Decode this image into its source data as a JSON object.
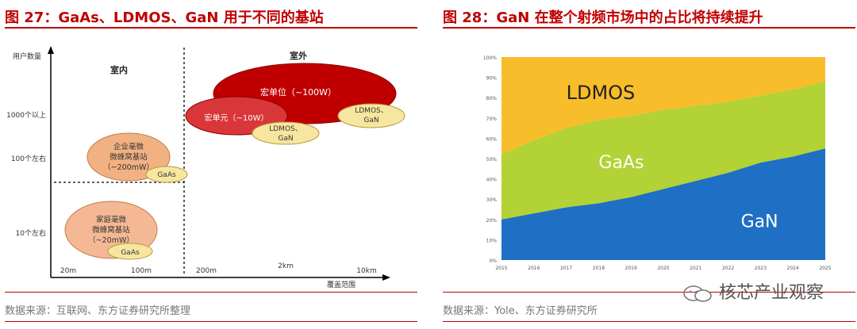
{
  "left": {
    "title": "图 27：GaAs、LDMOS、GaN 用于不同的基站",
    "source": "数据来源：互联网、东方证券研究所整理",
    "y_axis_label": "用户数量",
    "x_axis_label": "覆盖范围",
    "y_ticks": [
      "1000个以上",
      "100个左右",
      "10个左右"
    ],
    "x_ticks": [
      "20m",
      "100m",
      "200m",
      "2km",
      "10km"
    ],
    "region_indoor": "室内",
    "region_outdoor": "室外",
    "bubbles": {
      "macro": "宏单位（~100W）",
      "micro": "宏单元（~10W）",
      "ldmos_gan_1": [
        "LDMOS、",
        "GaN"
      ],
      "ldmos_gan_2": [
        "LDMOS、",
        "GaN"
      ],
      "enterprise": [
        "企业毫微",
        "微蜂窝基站",
        "（~200mW）"
      ],
      "gaas_1": "GaAs",
      "home": [
        "家庭毫微",
        "微蜂窝基站",
        "（~20mW）"
      ],
      "gaas_2": "GaAs"
    },
    "colors": {
      "macro": "#c00000",
      "micro": "#d9363a",
      "ldmos_gan": "#f7e6a0",
      "enterprise": "#f2b182",
      "home": "#f5b894",
      "gaas": "#f7e6a0"
    }
  },
  "right": {
    "title": "图 28：GaN 在整个射频市场中的占比将持续提升",
    "source": "数据来源：Yole、东方证券研究所",
    "watermark": "核芯产业观察"
  },
  "chart_data": {
    "type": "area",
    "stacked": true,
    "x": [
      2015,
      2016,
      2017,
      2018,
      2019,
      2020,
      2021,
      2022,
      2023,
      2024,
      2025
    ],
    "x_labels": [
      "2015",
      "2016",
      "2017",
      "2018",
      "2019",
      "2020",
      "2021",
      "2022",
      "2023",
      "2024",
      "2025"
    ],
    "y_ticks": [
      "0%",
      "10%",
      "20%",
      "30%",
      "40%",
      "50%",
      "60%",
      "70%",
      "80%",
      "90%",
      "100%"
    ],
    "ylim": [
      0,
      100
    ],
    "series": [
      {
        "name": "GaN",
        "color": "#1f6fc4",
        "values": [
          20,
          23,
          26,
          28,
          31,
          35,
          39,
          43,
          48,
          51,
          55
        ]
      },
      {
        "name": "GaAs",
        "color": "#b2d235",
        "values": [
          32,
          36,
          39,
          41,
          40,
          39,
          37,
          35,
          33,
          33,
          33
        ]
      },
      {
        "name": "LDMOS",
        "color": "#f7bd2a",
        "values": [
          48,
          41,
          35,
          31,
          29,
          26,
          24,
          22,
          19,
          16,
          12
        ]
      }
    ]
  }
}
